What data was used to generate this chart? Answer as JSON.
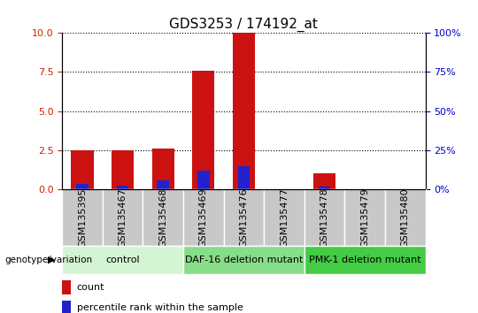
{
  "title": "GDS3253 / 174192_at",
  "samples": [
    "GSM135395",
    "GSM135467",
    "GSM135468",
    "GSM135469",
    "GSM135476",
    "GSM135477",
    "GSM135478",
    "GSM135479",
    "GSM135480"
  ],
  "count_values": [
    2.5,
    2.5,
    2.6,
    7.6,
    10.0,
    0.02,
    1.0,
    0.0,
    0.0
  ],
  "percentile_values": [
    3.5,
    2.5,
    5.5,
    12.0,
    15.0,
    0.2,
    1.8,
    0.0,
    0.0
  ],
  "groups": [
    {
      "label": "control",
      "start": 0,
      "end": 3,
      "color": "#d4f5d4"
    },
    {
      "label": "DAF-16 deletion mutant",
      "start": 3,
      "end": 6,
      "color": "#88dd88"
    },
    {
      "label": "PMK-1 deletion mutant",
      "start": 6,
      "end": 9,
      "color": "#44cc44"
    }
  ],
  "ylim_left": [
    0,
    10
  ],
  "ylim_right": [
    0,
    100
  ],
  "left_ticks": [
    0,
    2.5,
    5,
    7.5,
    10
  ],
  "right_ticks": [
    0,
    25,
    50,
    75,
    100
  ],
  "count_color": "#cc1111",
  "percentile_color": "#2222cc",
  "left_tick_color": "#cc2200",
  "right_tick_color": "#0000cc",
  "background_color": "white",
  "genotype_label": "genotype/variation",
  "legend_count": "count",
  "legend_percentile": "percentile rank within the sample",
  "title_fontsize": 11,
  "tick_fontsize": 8,
  "group_fontsize": 8,
  "xtick_cell_color": "#c8c8c8",
  "xtick_divider_color": "white"
}
